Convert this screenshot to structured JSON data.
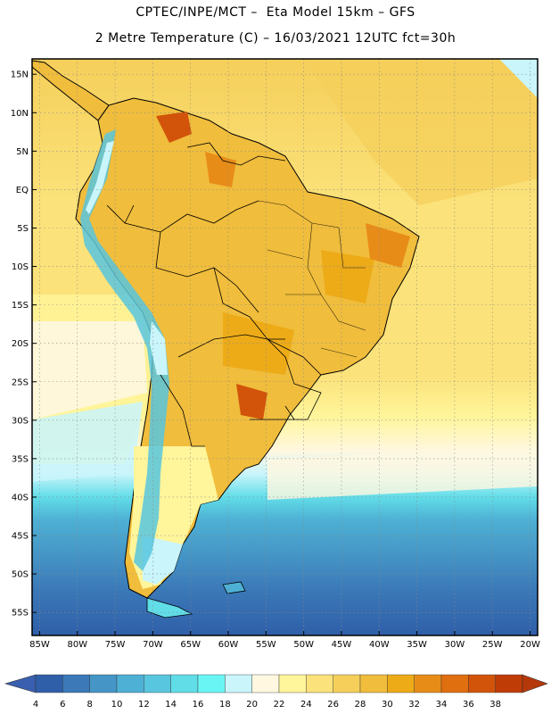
{
  "header": {
    "line1": "CPTEC/INPE/MCT –  Eta Model 15km – GFS",
    "line2": "2 Metre Temperature (C) – 16/03/2021 12UTC fct=30h"
  },
  "map": {
    "lon_range": [
      -86,
      -19
    ],
    "lat_range": [
      -58,
      17
    ],
    "lat_ticks": [
      {
        "value": 15,
        "label": "15N"
      },
      {
        "value": 10,
        "label": "10N"
      },
      {
        "value": 5,
        "label": "5N"
      },
      {
        "value": 0,
        "label": "EQ"
      },
      {
        "value": -5,
        "label": "5S"
      },
      {
        "value": -10,
        "label": "10S"
      },
      {
        "value": -15,
        "label": "15S"
      },
      {
        "value": -20,
        "label": "20S"
      },
      {
        "value": -25,
        "label": "25S"
      },
      {
        "value": -30,
        "label": "30S"
      },
      {
        "value": -35,
        "label": "35S"
      },
      {
        "value": -40,
        "label": "40S"
      },
      {
        "value": -45,
        "label": "45S"
      },
      {
        "value": -50,
        "label": "50S"
      },
      {
        "value": -55,
        "label": "55S"
      }
    ],
    "lon_ticks": [
      {
        "value": -85,
        "label": "85W"
      },
      {
        "value": -80,
        "label": "80W"
      },
      {
        "value": -75,
        "label": "75W"
      },
      {
        "value": -70,
        "label": "70W"
      },
      {
        "value": -65,
        "label": "65W"
      },
      {
        "value": -60,
        "label": "60W"
      },
      {
        "value": -55,
        "label": "55W"
      },
      {
        "value": -50,
        "label": "50W"
      },
      {
        "value": -45,
        "label": "45W"
      },
      {
        "value": -40,
        "label": "40W"
      },
      {
        "value": -35,
        "label": "35W"
      },
      {
        "value": -30,
        "label": "30W"
      },
      {
        "value": -25,
        "label": "25W"
      },
      {
        "value": -20,
        "label": "20W"
      }
    ],
    "grid": true
  },
  "colorbar": {
    "labels": [
      "4",
      "6",
      "8",
      "10",
      "12",
      "14",
      "16",
      "18",
      "20",
      "22",
      "24",
      "26",
      "28",
      "30",
      "32",
      "34",
      "36",
      "38"
    ],
    "low_extend_color": "#3a5fb0",
    "high_extend_color": "#b5380a",
    "colors": [
      "#2f5fa8",
      "#3b79b8",
      "#4596c6",
      "#4eb0d4",
      "#58c6de",
      "#61dde8",
      "#6af5f5",
      "#c9f5fb",
      "#fff7e0",
      "#fff59a",
      "#fbe27a",
      "#f5cf5a",
      "#f0bd3c",
      "#edab18",
      "#e88c18",
      "#e06f10",
      "#d2540a",
      "#c03c06"
    ]
  },
  "temperature_zones": [
    {
      "name": "south-ocean-deep",
      "value": 6
    },
    {
      "name": "south-ocean",
      "value": 10
    },
    {
      "name": "ocean-mid",
      "value": 14
    },
    {
      "name": "ocean-cool",
      "value": 18
    },
    {
      "name": "ocean-warm",
      "value": 24
    },
    {
      "name": "ocean-tropical",
      "value": 26
    },
    {
      "name": "land-warm",
      "value": 28
    },
    {
      "name": "land-hot",
      "value": 30
    },
    {
      "name": "andes-cold",
      "value": 12
    }
  ]
}
